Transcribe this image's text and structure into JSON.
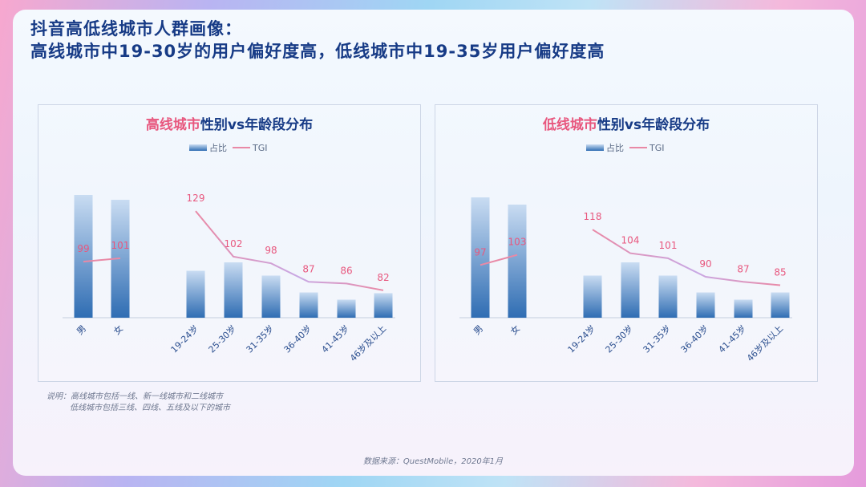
{
  "title_line1": "抖音高低线城市人群画像：",
  "title_line2": "高线城市中19-30岁的用户偏好度高，低线城市中19-35岁用户偏好度高",
  "note_line1": "说明：高线城市包括一线、新一线城市和二线城市",
  "note_line2": "低线城市包括三线、四线、五线及以下的城市",
  "source": "数据来源：QuestMobile，2020年1月",
  "colors": {
    "title": "#173b86",
    "highlight": "#e8577e",
    "tgi_line": "#e989a6",
    "bar_top": "#c9dcf2",
    "bar_bottom": "#2f6db3"
  },
  "chart_data": [
    {
      "type": "bar",
      "title_highlight": "高线城市",
      "title_rest": "性别vs年龄段分布",
      "legend": [
        "占比",
        "TGI"
      ],
      "legend_position": "top-center",
      "gender_categories": [
        "男",
        "女"
      ],
      "age_categories": [
        "19-24岁",
        "25-30岁",
        "31-35岁",
        "36-40岁",
        "41-45岁",
        "46岁及以上"
      ],
      "series": [
        {
          "name": "占比",
          "type": "bar",
          "gender_values": [
            51,
            49
          ],
          "age_values": [
            19.5,
            23,
            17.5,
            10.5,
            7.5,
            10.2
          ]
        },
        {
          "name": "TGI",
          "type": "line",
          "gender_values": [
            99,
            101
          ],
          "age_values": [
            129,
            102,
            98,
            87,
            86,
            82
          ]
        }
      ],
      "grid": false
    },
    {
      "type": "bar",
      "title_highlight": "低线城市",
      "title_rest": "性别vs年龄段分布",
      "legend": [
        "占比",
        "TGI"
      ],
      "legend_position": "top-center",
      "gender_categories": [
        "男",
        "女"
      ],
      "age_categories": [
        "19-24岁",
        "25-30岁",
        "31-35岁",
        "36-40岁",
        "41-45岁",
        "46岁及以上"
      ],
      "series": [
        {
          "name": "占比",
          "type": "bar",
          "gender_values": [
            50,
            47
          ],
          "age_values": [
            17.5,
            23,
            17.5,
            10.5,
            7.5,
            10.5
          ]
        },
        {
          "name": "TGI",
          "type": "line",
          "gender_values": [
            97,
            103
          ],
          "age_values": [
            118,
            104,
            101,
            90,
            87,
            85
          ]
        }
      ],
      "grid": false
    }
  ]
}
